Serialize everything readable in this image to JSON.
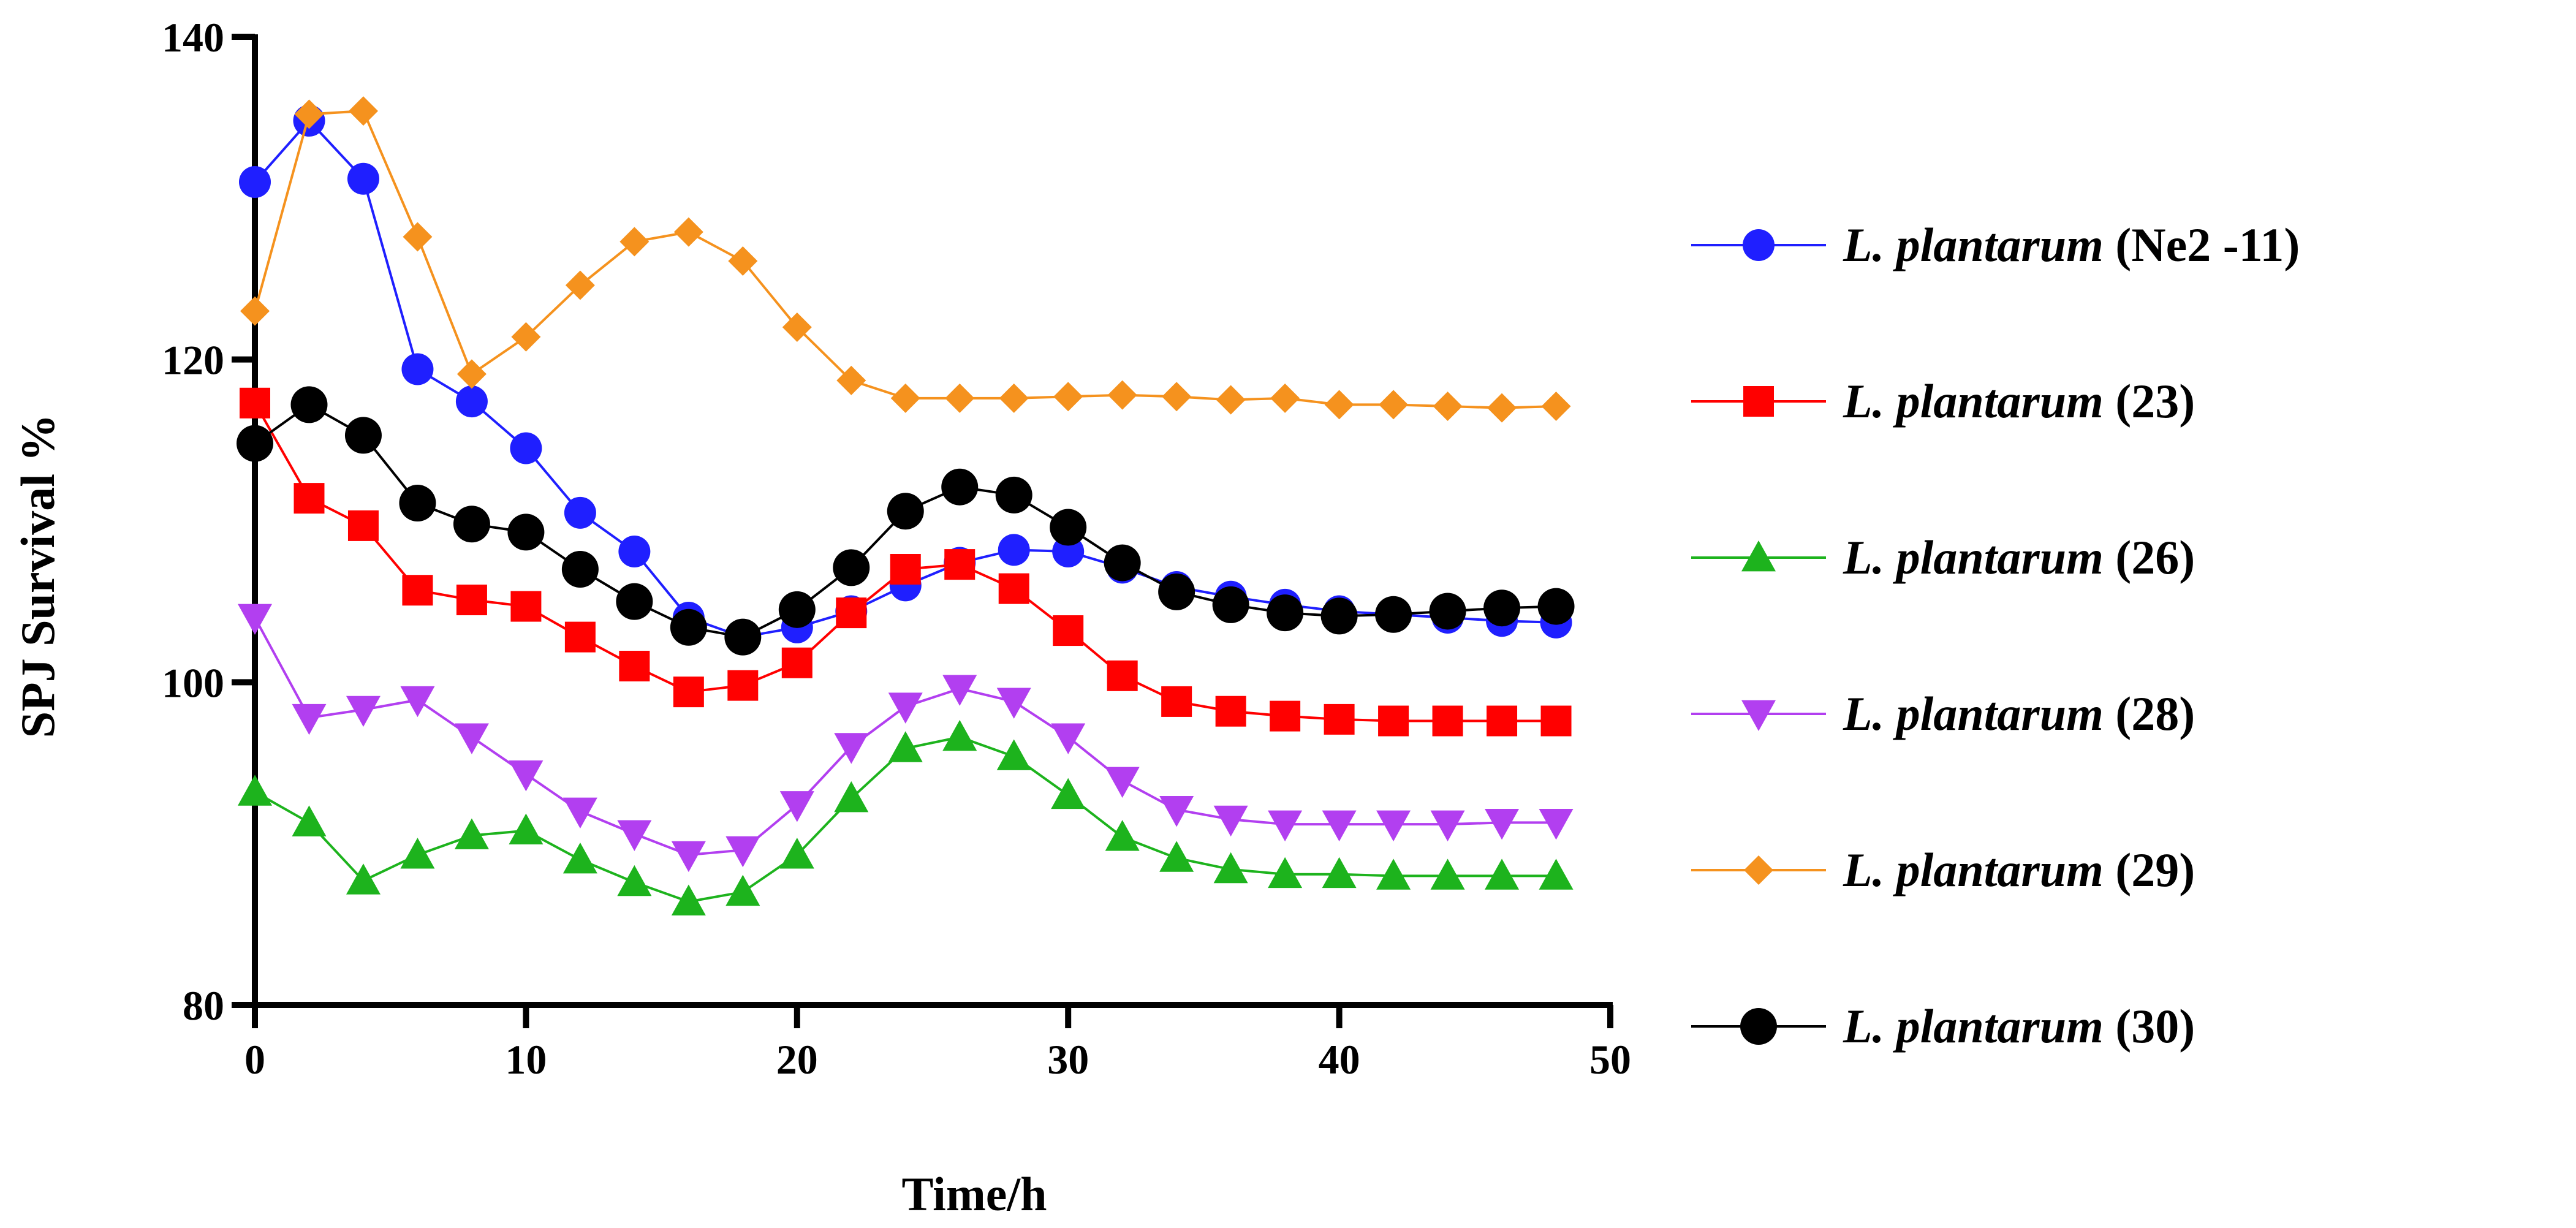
{
  "chart_data": {
    "type": "line",
    "title": "",
    "xlabel": "Time/h",
    "ylabel": "SPJ Survival %",
    "xlim": [
      0,
      50
    ],
    "ylim": [
      80,
      140
    ],
    "x_ticks": [
      0,
      10,
      20,
      30,
      40,
      50
    ],
    "y_ticks": [
      80,
      100,
      120,
      140
    ],
    "x_tick_labels": [
      "0",
      "10",
      "20",
      "30",
      "40",
      "50"
    ],
    "y_tick_labels": [
      "80",
      "100",
      "120",
      "140"
    ],
    "grid": false,
    "legend_position": "right",
    "x": [
      0,
      2,
      4,
      6,
      8,
      10,
      12,
      14,
      16,
      18,
      20,
      22,
      24,
      26,
      28,
      30,
      32,
      34,
      36,
      38,
      40,
      42,
      44,
      46,
      48
    ],
    "series": [
      {
        "name_italic": "L. plantarum",
        "name_suffix": " (Ne2 -11)",
        "color": "#1f1fff",
        "marker": "circle",
        "values": [
          131,
          134.8,
          131.2,
          119.4,
          117.4,
          114.5,
          110.5,
          108.1,
          104,
          102.8,
          103.4,
          104.4,
          106,
          107.4,
          108.2,
          108.1,
          107.1,
          105.9,
          105.3,
          104.8,
          104.4,
          104.2,
          104,
          103.8,
          103.7
        ]
      },
      {
        "name_italic": "L. plantarum",
        "name_suffix": " (23)",
        "color": "#ff0000",
        "marker": "square",
        "values": [
          117.3,
          111.4,
          109.7,
          105.7,
          105.1,
          104.7,
          102.8,
          101,
          99.4,
          99.8,
          101.2,
          104.3,
          107,
          107.3,
          105.8,
          103.2,
          100.4,
          98.8,
          98.2,
          97.9,
          97.7,
          97.6,
          97.6,
          97.6,
          97.6
        ]
      },
      {
        "name_italic": "L. plantarum",
        "name_suffix": " (26)",
        "color": "#1db31d",
        "marker": "triangle-up",
        "values": [
          93.2,
          91.3,
          87.7,
          89.3,
          90.5,
          90.8,
          89,
          87.6,
          86.4,
          87,
          89.3,
          92.8,
          95.9,
          96.6,
          95.4,
          93,
          90.4,
          89.1,
          88.4,
          88.1,
          88.1,
          88,
          88,
          88,
          88
        ]
      },
      {
        "name_italic": "L. plantarum",
        "name_suffix": " (28)",
        "color": "#b23ff0",
        "marker": "triangle-down",
        "values": [
          104,
          97.8,
          98.3,
          98.9,
          96.6,
          94.3,
          92,
          90.6,
          89.3,
          89.6,
          92.4,
          96,
          98.5,
          99.6,
          98.8,
          96.6,
          93.9,
          92.1,
          91.5,
          91.2,
          91.2,
          91.2,
          91.2,
          91.3,
          91.3
        ]
      },
      {
        "name_italic": "L. plantarum",
        "name_suffix": " (29)",
        "color": "#f5921e",
        "marker": "diamond",
        "values": [
          123,
          135.2,
          135.4,
          127.6,
          119.1,
          121.4,
          124.6,
          127.3,
          127.9,
          126.1,
          122,
          118.7,
          117.6,
          117.6,
          117.6,
          117.7,
          117.8,
          117.7,
          117.5,
          117.6,
          117.2,
          117.2,
          117.1,
          117,
          117.1
        ]
      },
      {
        "name_italic": "L. plantarum",
        "name_suffix": " (30)",
        "color": "#000000",
        "marker": "circle",
        "values": [
          114.8,
          117.2,
          115.3,
          111.1,
          109.8,
          109.3,
          107,
          105,
          103.4,
          102.8,
          104.5,
          107.1,
          110.6,
          112.1,
          111.6,
          109.6,
          107.4,
          105.6,
          104.8,
          104.3,
          104.1,
          104.2,
          104.4,
          104.6,
          104.7
        ]
      }
    ]
  }
}
